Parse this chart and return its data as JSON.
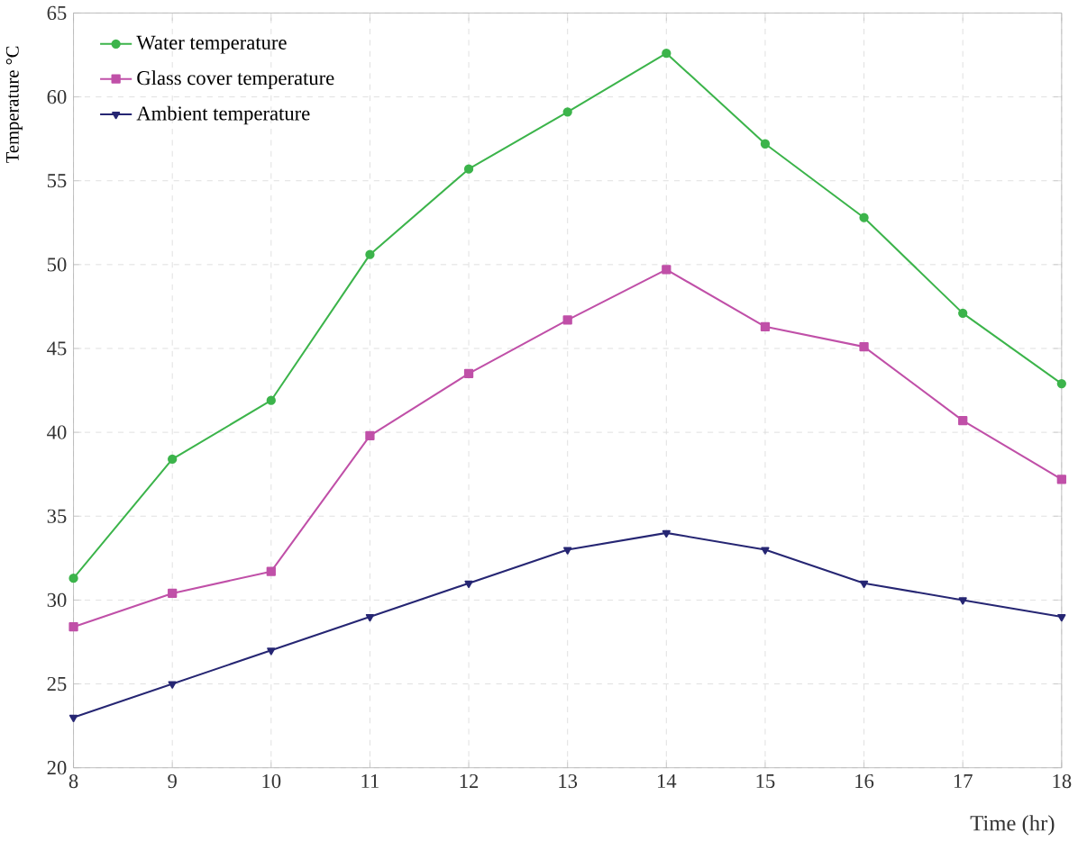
{
  "chart_data": {
    "type": "line",
    "xlabel": "Time (hr)",
    "ylabel": "Temperature °C",
    "x": [
      8,
      9,
      10,
      11,
      12,
      13,
      14,
      15,
      16,
      17,
      18
    ],
    "series": [
      {
        "name": "Water temperature",
        "color": "#3cb44b",
        "marker": "circle",
        "values": [
          31.3,
          38.4,
          41.9,
          50.6,
          55.7,
          59.1,
          62.6,
          57.2,
          52.8,
          47.1,
          42.9
        ]
      },
      {
        "name": "Glass cover temperature",
        "color": "#c050a8",
        "marker": "square",
        "values": [
          28.4,
          30.4,
          31.7,
          39.8,
          43.5,
          46.7,
          49.7,
          46.3,
          45.1,
          40.7,
          37.2
        ]
      },
      {
        "name": "Ambient temperature",
        "color": "#262673",
        "marker": "triangle",
        "values": [
          23,
          25,
          27,
          29,
          31,
          33,
          34,
          33,
          31,
          30,
          29
        ]
      }
    ],
    "xlim": [
      8,
      18
    ],
    "ylim": [
      20,
      65
    ],
    "xticks": [
      8,
      9,
      10,
      11,
      12,
      13,
      14,
      15,
      16,
      17,
      18
    ],
    "yticks": [
      20,
      25,
      30,
      35,
      40,
      45,
      50,
      55,
      60,
      65
    ],
    "grid": true,
    "legend": "top left",
    "line_style": "solid"
  }
}
